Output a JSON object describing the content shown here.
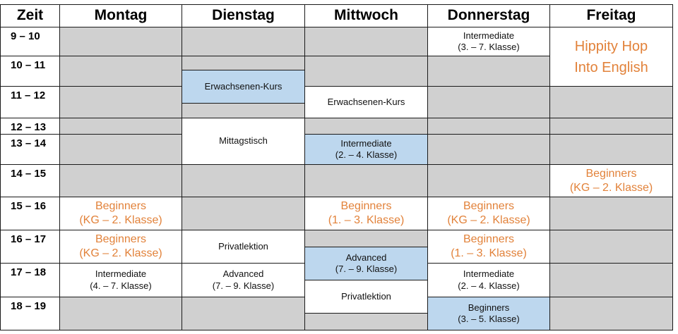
{
  "header": {
    "time_label": "Zeit",
    "days": [
      "Montag",
      "Dienstag",
      "Mittwoch",
      "Donnerstag",
      "Freitag"
    ]
  },
  "times": [
    "9 – 10",
    "10 – 11",
    "11 – 12",
    "12 – 13",
    "13 – 14",
    "14 – 15",
    "15 – 16",
    "16 – 17",
    "17 – 18",
    "18 – 19"
  ],
  "colors": {
    "free_slot": "#d0d0d0",
    "highlight_slot": "#bdd7ee",
    "course_text_orange": "#e2823a",
    "border": "#1a1a1a"
  },
  "events": {
    "mon_beginners_1": [
      "Beginners",
      "(KG – 2. Klasse)"
    ],
    "mon_beginners_2": [
      "Beginners",
      "(KG – 2. Klasse)"
    ],
    "mon_intermediate": [
      "Intermediate",
      "(4. – 7. Klasse)"
    ],
    "tue_erwachsenen": [
      "Erwachsenen-Kurs"
    ],
    "tue_mittagstisch": [
      "Mittagstisch"
    ],
    "tue_privatlektion": [
      "Privatlektion"
    ],
    "tue_advanced": [
      "Advanced",
      "(7. – 9. Klasse)"
    ],
    "wed_erwachsenen": [
      "Erwachsenen-Kurs"
    ],
    "wed_intermediate": [
      "Intermediate",
      "(2. – 4. Klasse)"
    ],
    "wed_beginners": [
      "Beginners",
      "(1. – 3. Klasse)"
    ],
    "wed_advanced": [
      "Advanced",
      "(7. – 9. Klasse)"
    ],
    "wed_privatlektion": [
      "Privatlektion"
    ],
    "thu_intermediate_1": [
      "Intermediate",
      "(3. – 7. Klasse)"
    ],
    "thu_beginners_1": [
      "Beginners",
      "(KG – 2. Klasse)"
    ],
    "thu_beginners_2": [
      "Beginners",
      "(1. – 3. Klasse)"
    ],
    "thu_intermediate_2": [
      "Intermediate",
      "(2. – 4. Klasse)"
    ],
    "thu_beginners_3": [
      "Beginners",
      "(3. – 5. Klasse)"
    ],
    "fri_hippity": [
      "Hippity Hop",
      "Into English"
    ],
    "fri_beginners": [
      "Beginners",
      "(KG – 2. Klasse)"
    ]
  }
}
